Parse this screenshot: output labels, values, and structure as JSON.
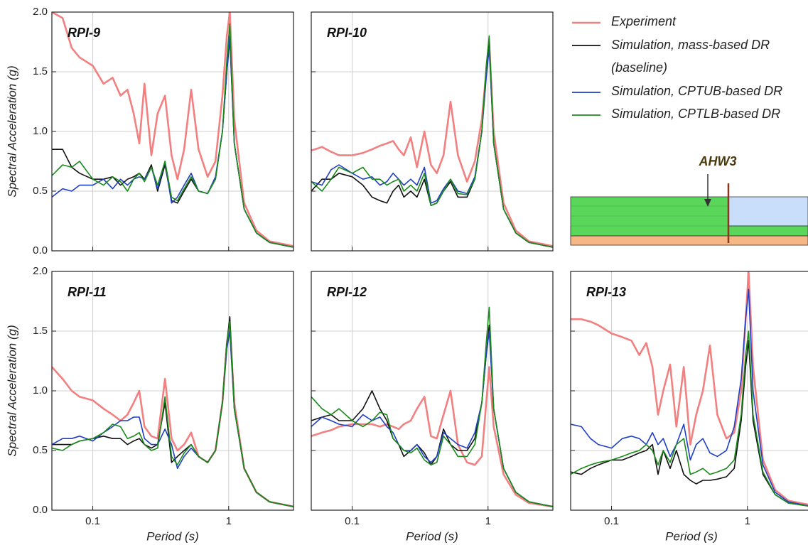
{
  "chart_data": [
    {
      "type": "line",
      "title": "RPI-9",
      "xscale": "log",
      "ylabel": "Spectral Acceleration (g)",
      "xlim": [
        0.05,
        3
      ],
      "ylim": [
        0,
        2
      ],
      "xticks": [
        0.1,
        1
      ],
      "yticks": [
        {
          "value": 0,
          "label": "0.0"
        },
        0.5,
        {
          "value": 1,
          "label": "1.0"
        },
        1.5,
        {
          "value": 2,
          "label": "2.0"
        }
      ],
      "grid": true,
      "x": [
        0.05,
        0.06,
        0.07,
        0.08,
        0.1,
        0.12,
        0.14,
        0.16,
        0.18,
        0.2,
        0.22,
        0.24,
        0.27,
        0.3,
        0.34,
        0.38,
        0.42,
        0.47,
        0.53,
        0.6,
        0.7,
        0.8,
        0.9,
        0.97,
        1.02,
        1.1,
        1.3,
        1.6,
        2.0,
        3.0
      ],
      "series": [
        {
          "name": "Experiment",
          "color": "#f28080",
          "values": [
            2.0,
            1.95,
            1.7,
            1.62,
            1.55,
            1.4,
            1.45,
            1.3,
            1.35,
            1.15,
            0.9,
            1.4,
            0.8,
            1.15,
            1.3,
            0.8,
            0.6,
            0.85,
            1.35,
            0.85,
            0.62,
            0.75,
            1.3,
            1.8,
            2.0,
            1.1,
            0.4,
            0.17,
            0.08,
            0.04
          ]
        },
        {
          "name": "Simulation, mass-based DR (baseline)",
          "color": "#111111",
          "values": [
            0.85,
            0.85,
            0.7,
            0.65,
            0.6,
            0.6,
            0.62,
            0.55,
            0.6,
            0.62,
            0.65,
            0.6,
            0.72,
            0.5,
            0.72,
            0.42,
            0.4,
            0.5,
            0.6,
            0.5,
            0.48,
            0.6,
            1.0,
            1.5,
            1.78,
            0.9,
            0.35,
            0.15,
            0.07,
            0.03
          ]
        },
        {
          "name": "Simulation, CPTUB-based DR",
          "color": "#1f3fc4",
          "values": [
            0.45,
            0.52,
            0.5,
            0.55,
            0.55,
            0.6,
            0.52,
            0.6,
            0.55,
            0.6,
            0.62,
            0.6,
            0.7,
            0.52,
            0.75,
            0.4,
            0.45,
            0.55,
            0.65,
            0.5,
            0.48,
            0.62,
            1.0,
            1.5,
            1.8,
            0.9,
            0.35,
            0.15,
            0.07,
            0.03
          ]
        },
        {
          "name": "Simulation, CPTLB-based DR",
          "color": "#1a8a1a",
          "values": [
            0.63,
            0.72,
            0.7,
            0.75,
            0.6,
            0.55,
            0.62,
            0.58,
            0.5,
            0.6,
            0.65,
            0.58,
            0.7,
            0.55,
            0.75,
            0.45,
            0.42,
            0.52,
            0.62,
            0.5,
            0.48,
            0.6,
            1.0,
            1.6,
            1.9,
            0.9,
            0.35,
            0.15,
            0.07,
            0.03
          ]
        }
      ]
    },
    {
      "type": "line",
      "title": "RPI-10",
      "xscale": "log",
      "xlim": [
        0.05,
        3
      ],
      "ylim": [
        0,
        2
      ],
      "xticks": [
        0.1,
        1
      ],
      "yticks": [
        0,
        0.5,
        1,
        1.5,
        2
      ],
      "grid": true,
      "x": [
        0.05,
        0.06,
        0.07,
        0.08,
        0.1,
        0.12,
        0.14,
        0.16,
        0.18,
        0.2,
        0.22,
        0.24,
        0.27,
        0.3,
        0.34,
        0.38,
        0.42,
        0.47,
        0.53,
        0.6,
        0.7,
        0.8,
        0.9,
        0.97,
        1.02,
        1.1,
        1.3,
        1.6,
        2.0,
        3.0
      ],
      "series": [
        {
          "color": "#f28080",
          "values": [
            0.84,
            0.87,
            0.83,
            0.8,
            0.8,
            0.82,
            0.85,
            0.88,
            0.9,
            0.92,
            0.85,
            0.8,
            0.95,
            0.7,
            1.0,
            0.72,
            0.65,
            0.8,
            1.25,
            0.8,
            0.58,
            0.75,
            1.1,
            1.5,
            1.75,
            1.0,
            0.4,
            0.17,
            0.08,
            0.04
          ]
        },
        {
          "color": "#111111",
          "values": [
            0.5,
            0.6,
            0.6,
            0.65,
            0.62,
            0.55,
            0.45,
            0.42,
            0.4,
            0.5,
            0.55,
            0.45,
            0.5,
            0.45,
            0.6,
            0.38,
            0.4,
            0.5,
            0.58,
            0.45,
            0.45,
            0.6,
            1.0,
            1.5,
            1.75,
            0.9,
            0.35,
            0.15,
            0.07,
            0.03
          ]
        },
        {
          "color": "#1f3fc4",
          "values": [
            0.58,
            0.55,
            0.68,
            0.72,
            0.65,
            0.6,
            0.62,
            0.55,
            0.58,
            0.65,
            0.6,
            0.55,
            0.6,
            0.55,
            0.7,
            0.4,
            0.42,
            0.52,
            0.6,
            0.5,
            0.48,
            0.62,
            1.0,
            1.45,
            1.7,
            0.9,
            0.35,
            0.15,
            0.07,
            0.03
          ]
        },
        {
          "color": "#1a8a1a",
          "values": [
            0.58,
            0.5,
            0.6,
            0.7,
            0.65,
            0.7,
            0.6,
            0.6,
            0.55,
            0.58,
            0.6,
            0.5,
            0.55,
            0.5,
            0.65,
            0.38,
            0.4,
            0.5,
            0.6,
            0.48,
            0.47,
            0.6,
            1.0,
            1.55,
            1.8,
            0.9,
            0.35,
            0.15,
            0.07,
            0.03
          ]
        }
      ]
    },
    {
      "type": "line",
      "title": "RPI-11",
      "xscale": "log",
      "ylabel": "Spectral Acceleration (g)",
      "xlabel": "Period (s)",
      "xlim": [
        0.05,
        3
      ],
      "ylim": [
        0,
        2
      ],
      "xticks": [
        0.1,
        1
      ],
      "yticks": [
        {
          "value": 0,
          "label": "0.0"
        },
        0.5,
        {
          "value": 1,
          "label": "1.0"
        },
        1.5,
        {
          "value": 2,
          "label": "2.0"
        }
      ],
      "grid": true,
      "x": [
        0.05,
        0.06,
        0.07,
        0.08,
        0.1,
        0.12,
        0.14,
        0.16,
        0.18,
        0.2,
        0.22,
        0.24,
        0.27,
        0.3,
        0.34,
        0.38,
        0.42,
        0.47,
        0.53,
        0.6,
        0.7,
        0.8,
        0.9,
        0.97,
        1.02,
        1.1,
        1.3,
        1.6,
        2.0,
        3.0
      ],
      "series": [
        {
          "color": "#f28080",
          "values": [
            1.2,
            1.1,
            1.0,
            0.95,
            0.92,
            0.85,
            0.8,
            0.75,
            0.8,
            0.9,
            1.0,
            0.7,
            0.62,
            0.6,
            1.1,
            0.6,
            0.5,
            0.55,
            0.65,
            0.45,
            0.4,
            0.5,
            0.9,
            1.4,
            1.55,
            0.9,
            0.35,
            0.15,
            0.07,
            0.03
          ]
        },
        {
          "color": "#111111",
          "values": [
            0.55,
            0.55,
            0.55,
            0.58,
            0.6,
            0.62,
            0.6,
            0.6,
            0.55,
            0.58,
            0.6,
            0.55,
            0.52,
            0.55,
            0.9,
            0.4,
            0.45,
            0.5,
            0.55,
            0.45,
            0.4,
            0.5,
            0.9,
            1.4,
            1.62,
            0.85,
            0.35,
            0.15,
            0.07,
            0.03
          ]
        },
        {
          "color": "#1f3fc4",
          "values": [
            0.55,
            0.6,
            0.6,
            0.62,
            0.58,
            0.65,
            0.7,
            0.75,
            0.75,
            0.78,
            0.78,
            0.6,
            0.55,
            0.55,
            0.68,
            0.55,
            0.35,
            0.45,
            0.52,
            0.45,
            0.4,
            0.5,
            0.9,
            1.35,
            1.5,
            0.85,
            0.35,
            0.15,
            0.07,
            0.03
          ]
        },
        {
          "color": "#1a8a1a",
          "values": [
            0.52,
            0.5,
            0.55,
            0.58,
            0.6,
            0.65,
            0.72,
            0.7,
            0.6,
            0.62,
            0.65,
            0.55,
            0.5,
            0.52,
            0.95,
            0.45,
            0.38,
            0.48,
            0.55,
            0.45,
            0.4,
            0.5,
            0.9,
            1.4,
            1.58,
            0.85,
            0.35,
            0.15,
            0.07,
            0.03
          ]
        }
      ]
    },
    {
      "type": "line",
      "title": "RPI-12",
      "xscale": "log",
      "xlabel": "Period (s)",
      "xlim": [
        0.05,
        3
      ],
      "ylim": [
        0,
        2
      ],
      "xticks": [
        0.1,
        1
      ],
      "yticks": [
        0,
        0.5,
        1,
        1.5,
        2
      ],
      "grid": true,
      "x": [
        0.05,
        0.06,
        0.07,
        0.08,
        0.1,
        0.12,
        0.14,
        0.16,
        0.18,
        0.2,
        0.22,
        0.24,
        0.27,
        0.3,
        0.34,
        0.38,
        0.42,
        0.47,
        0.53,
        0.6,
        0.7,
        0.8,
        0.9,
        0.97,
        1.02,
        1.1,
        1.3,
        1.6,
        2.0,
        3.0
      ],
      "series": [
        {
          "color": "#f28080",
          "values": [
            0.62,
            0.65,
            0.67,
            0.7,
            0.72,
            0.72,
            0.72,
            0.7,
            0.72,
            0.7,
            0.68,
            0.72,
            0.75,
            0.85,
            0.95,
            0.62,
            0.6,
            0.8,
            1.0,
            0.55,
            0.4,
            0.38,
            0.45,
            0.9,
            1.2,
            0.7,
            0.3,
            0.13,
            0.06,
            0.03
          ]
        },
        {
          "color": "#111111",
          "values": [
            0.75,
            0.78,
            0.8,
            0.75,
            0.75,
            0.85,
            1.0,
            0.85,
            0.75,
            0.6,
            0.55,
            0.45,
            0.5,
            0.55,
            0.48,
            0.38,
            0.45,
            0.68,
            0.55,
            0.5,
            0.5,
            0.6,
            0.9,
            1.3,
            1.55,
            0.85,
            0.35,
            0.15,
            0.07,
            0.03
          ]
        },
        {
          "color": "#1f3fc4",
          "values": [
            0.7,
            0.78,
            0.75,
            0.72,
            0.7,
            0.8,
            0.75,
            0.78,
            0.7,
            0.65,
            0.55,
            0.5,
            0.5,
            0.55,
            0.45,
            0.4,
            0.45,
            0.65,
            0.6,
            0.55,
            0.52,
            0.65,
            0.9,
            1.3,
            1.5,
            0.85,
            0.35,
            0.15,
            0.07,
            0.03
          ]
        },
        {
          "color": "#1a8a1a",
          "values": [
            0.95,
            0.85,
            0.8,
            0.85,
            0.75,
            0.7,
            0.75,
            0.82,
            0.8,
            0.6,
            0.55,
            0.5,
            0.48,
            0.52,
            0.42,
            0.38,
            0.4,
            0.62,
            0.55,
            0.45,
            0.45,
            0.55,
            0.9,
            1.4,
            1.7,
            0.85,
            0.35,
            0.15,
            0.07,
            0.03
          ]
        }
      ]
    },
    {
      "type": "line",
      "title": "RPI-13",
      "xscale": "log",
      "xlabel": "Period (s)",
      "xlim": [
        0.05,
        3
      ],
      "ylim": [
        0,
        2
      ],
      "xticks": [
        0.1,
        1
      ],
      "yticks": [
        0,
        0.5,
        1,
        1.5,
        2
      ],
      "grid": true,
      "x": [
        0.05,
        0.06,
        0.07,
        0.08,
        0.1,
        0.12,
        0.14,
        0.16,
        0.18,
        0.2,
        0.22,
        0.24,
        0.27,
        0.3,
        0.34,
        0.38,
        0.42,
        0.47,
        0.53,
        0.6,
        0.7,
        0.8,
        0.9,
        0.97,
        1.02,
        1.1,
        1.3,
        1.6,
        2.0,
        3.0
      ],
      "series": [
        {
          "color": "#f28080",
          "values": [
            1.6,
            1.6,
            1.58,
            1.55,
            1.48,
            1.45,
            1.42,
            1.3,
            1.4,
            1.2,
            0.8,
            1.0,
            1.22,
            0.7,
            1.2,
            0.55,
            0.8,
            1.0,
            1.38,
            0.8,
            0.6,
            0.65,
            1.0,
            1.6,
            2.0,
            1.2,
            0.42,
            0.17,
            0.08,
            0.04
          ]
        },
        {
          "color": "#111111",
          "values": [
            0.32,
            0.3,
            0.35,
            0.38,
            0.42,
            0.42,
            0.45,
            0.48,
            0.5,
            0.55,
            0.3,
            0.5,
            0.35,
            0.5,
            0.3,
            0.25,
            0.22,
            0.25,
            0.25,
            0.26,
            0.28,
            0.35,
            0.75,
            1.2,
            1.42,
            0.75,
            0.3,
            0.13,
            0.06,
            0.03
          ]
        },
        {
          "color": "#1f3fc4",
          "values": [
            0.72,
            0.7,
            0.6,
            0.55,
            0.52,
            0.6,
            0.62,
            0.6,
            0.55,
            0.65,
            0.55,
            0.6,
            0.45,
            0.55,
            0.72,
            0.42,
            0.55,
            0.6,
            0.48,
            0.45,
            0.5,
            0.7,
            1.1,
            1.6,
            1.85,
            1.0,
            0.38,
            0.15,
            0.07,
            0.03
          ]
        },
        {
          "color": "#1a8a1a",
          "values": [
            0.3,
            0.35,
            0.38,
            0.4,
            0.42,
            0.45,
            0.48,
            0.5,
            0.55,
            0.5,
            0.38,
            0.5,
            0.4,
            0.55,
            0.6,
            0.3,
            0.32,
            0.35,
            0.3,
            0.32,
            0.35,
            0.42,
            0.8,
            1.3,
            1.5,
            0.8,
            0.32,
            0.13,
            0.06,
            0.03
          ]
        }
      ]
    }
  ],
  "schematic_label": "AHW3"
}
